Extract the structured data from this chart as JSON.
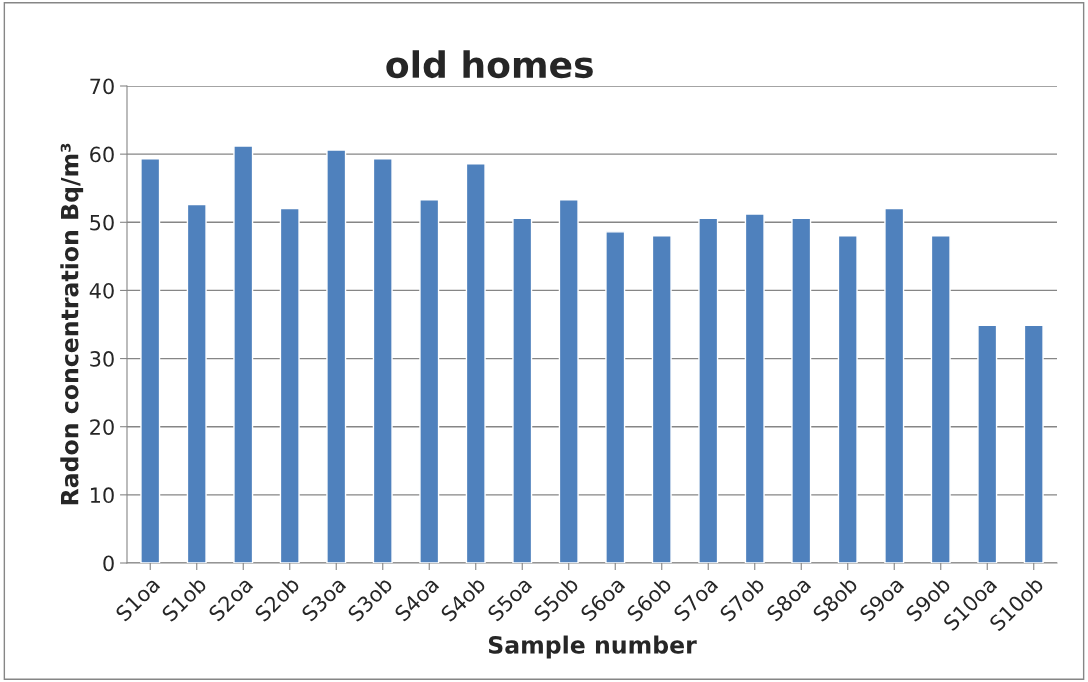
{
  "chart_data": {
    "type": "bar",
    "title": "old homes",
    "xlabel": "Sample number",
    "ylabel": "Radon concentration Bq/m³",
    "categories": [
      "S1oa",
      "S1ob",
      "S2oa",
      "S2ob",
      "S3oa",
      "S3ob",
      "S4oa",
      "S4ob",
      "S5oa",
      "S5ob",
      "S6oa",
      "S6ob",
      "S7oa",
      "S7ob",
      "S8oa",
      "S8ob",
      "S9oa",
      "S9ob",
      "S10oa",
      "S10ob"
    ],
    "values": [
      59.3,
      52.6,
      61.2,
      52,
      60.6,
      59.3,
      53.3,
      58.6,
      50.6,
      53.3,
      48.6,
      48,
      50.6,
      51.2,
      50.6,
      48,
      52,
      48,
      34.9,
      34.9
    ],
    "color": "#4f81bd",
    "ylim": [
      0,
      70
    ],
    "yticks": [
      0,
      10,
      20,
      30,
      40,
      50,
      60,
      70
    ],
    "grid": "y",
    "legend": false
  }
}
